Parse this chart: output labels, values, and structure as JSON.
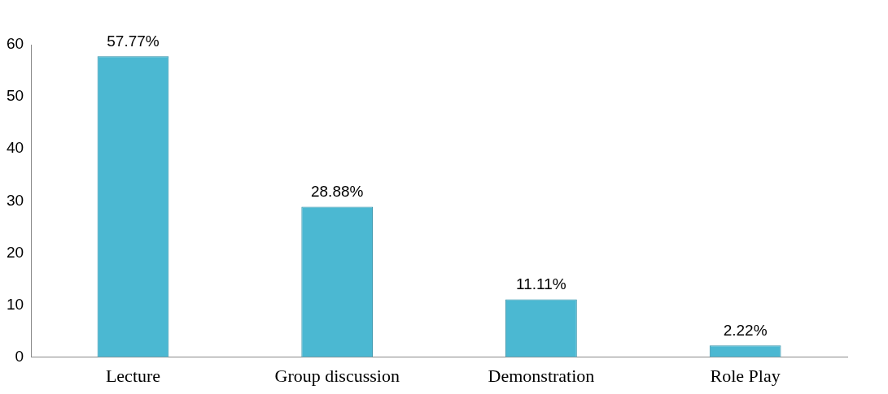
{
  "chart_data": {
    "type": "bar",
    "categories": [
      "Lecture",
      "Group discussion",
      "Demonstration",
      "Role Play"
    ],
    "values": [
      57.77,
      28.88,
      11.11,
      2.22
    ],
    "color": "#4bb8d2",
    "value_labels": [
      "57.77%",
      "28.88%",
      "11.11%",
      "2.22%"
    ],
    "ylim": [
      0,
      60
    ],
    "yticks": [
      0,
      10,
      20,
      30,
      40,
      50,
      60
    ],
    "grid": false,
    "legend": false
  }
}
